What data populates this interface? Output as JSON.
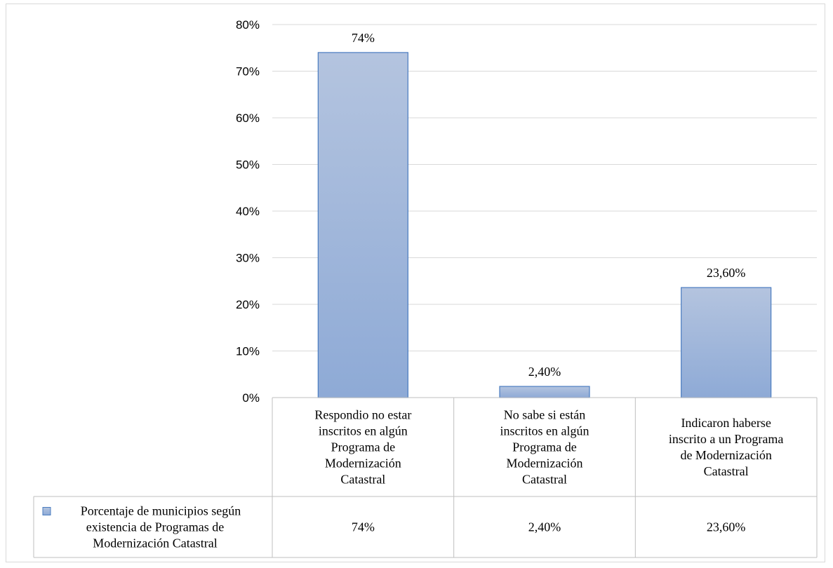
{
  "chart_data": {
    "type": "bar",
    "categories": [
      [
        "Respondio no estar",
        "inscritos en algún",
        "Programa de",
        "Modernización",
        "Catastral"
      ],
      [
        "No sabe si están",
        "inscritos en algún",
        "Programa de",
        "Modernización",
        "Catastral"
      ],
      [
        "Indicaron haberse",
        "inscrito a un Programa",
        "de Modernización",
        "Catastral"
      ]
    ],
    "series": [
      {
        "name": [
          "Porcentaje de municipios según",
          "existencia de Programas de",
          "Modernización Catastral"
        ],
        "values": [
          74,
          2.4,
          23.6
        ],
        "labels": [
          "74%",
          "2,40%",
          "23,60%"
        ]
      }
    ],
    "ylim": [
      0,
      80
    ],
    "yticks": [
      0,
      10,
      20,
      30,
      40,
      50,
      60,
      70,
      80
    ],
    "ytick_labels": [
      "0%",
      "10%",
      "20%",
      "30%",
      "40%",
      "50%",
      "60%",
      "70%",
      "80%"
    ],
    "grid": true,
    "legend_position": "data-table",
    "colors": {
      "bar_top": "#b4c4df",
      "bar_bottom": "#8eaad6",
      "bar_border": "#4a7cc0",
      "grid": "#d9d9d9"
    }
  }
}
